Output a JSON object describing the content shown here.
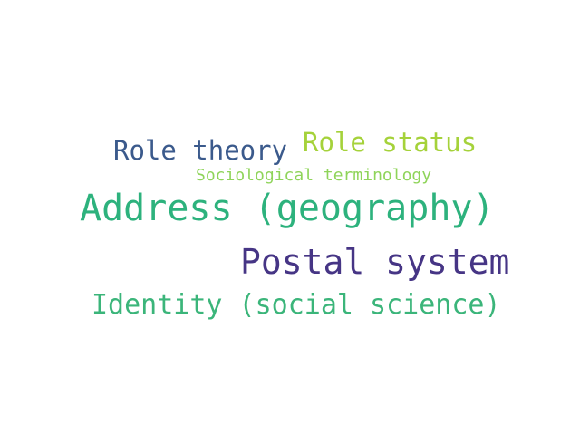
{
  "words": [
    {
      "key": "role_status",
      "text": "Role status",
      "color": "#a5d23a"
    },
    {
      "key": "role_theory",
      "text": "Role theory",
      "color": "#3b5a8c"
    },
    {
      "key": "sociological_terminology",
      "text": "Sociological terminology",
      "color": "#8fd45a"
    },
    {
      "key": "address_geography",
      "text": "Address (geography)",
      "color": "#2db27d"
    },
    {
      "key": "postal_system",
      "text": "Postal system",
      "color": "#463585"
    },
    {
      "key": "identity_social_science",
      "text": "Identity (social science)",
      "color": "#3bb57a"
    }
  ],
  "background": "#ffffff"
}
